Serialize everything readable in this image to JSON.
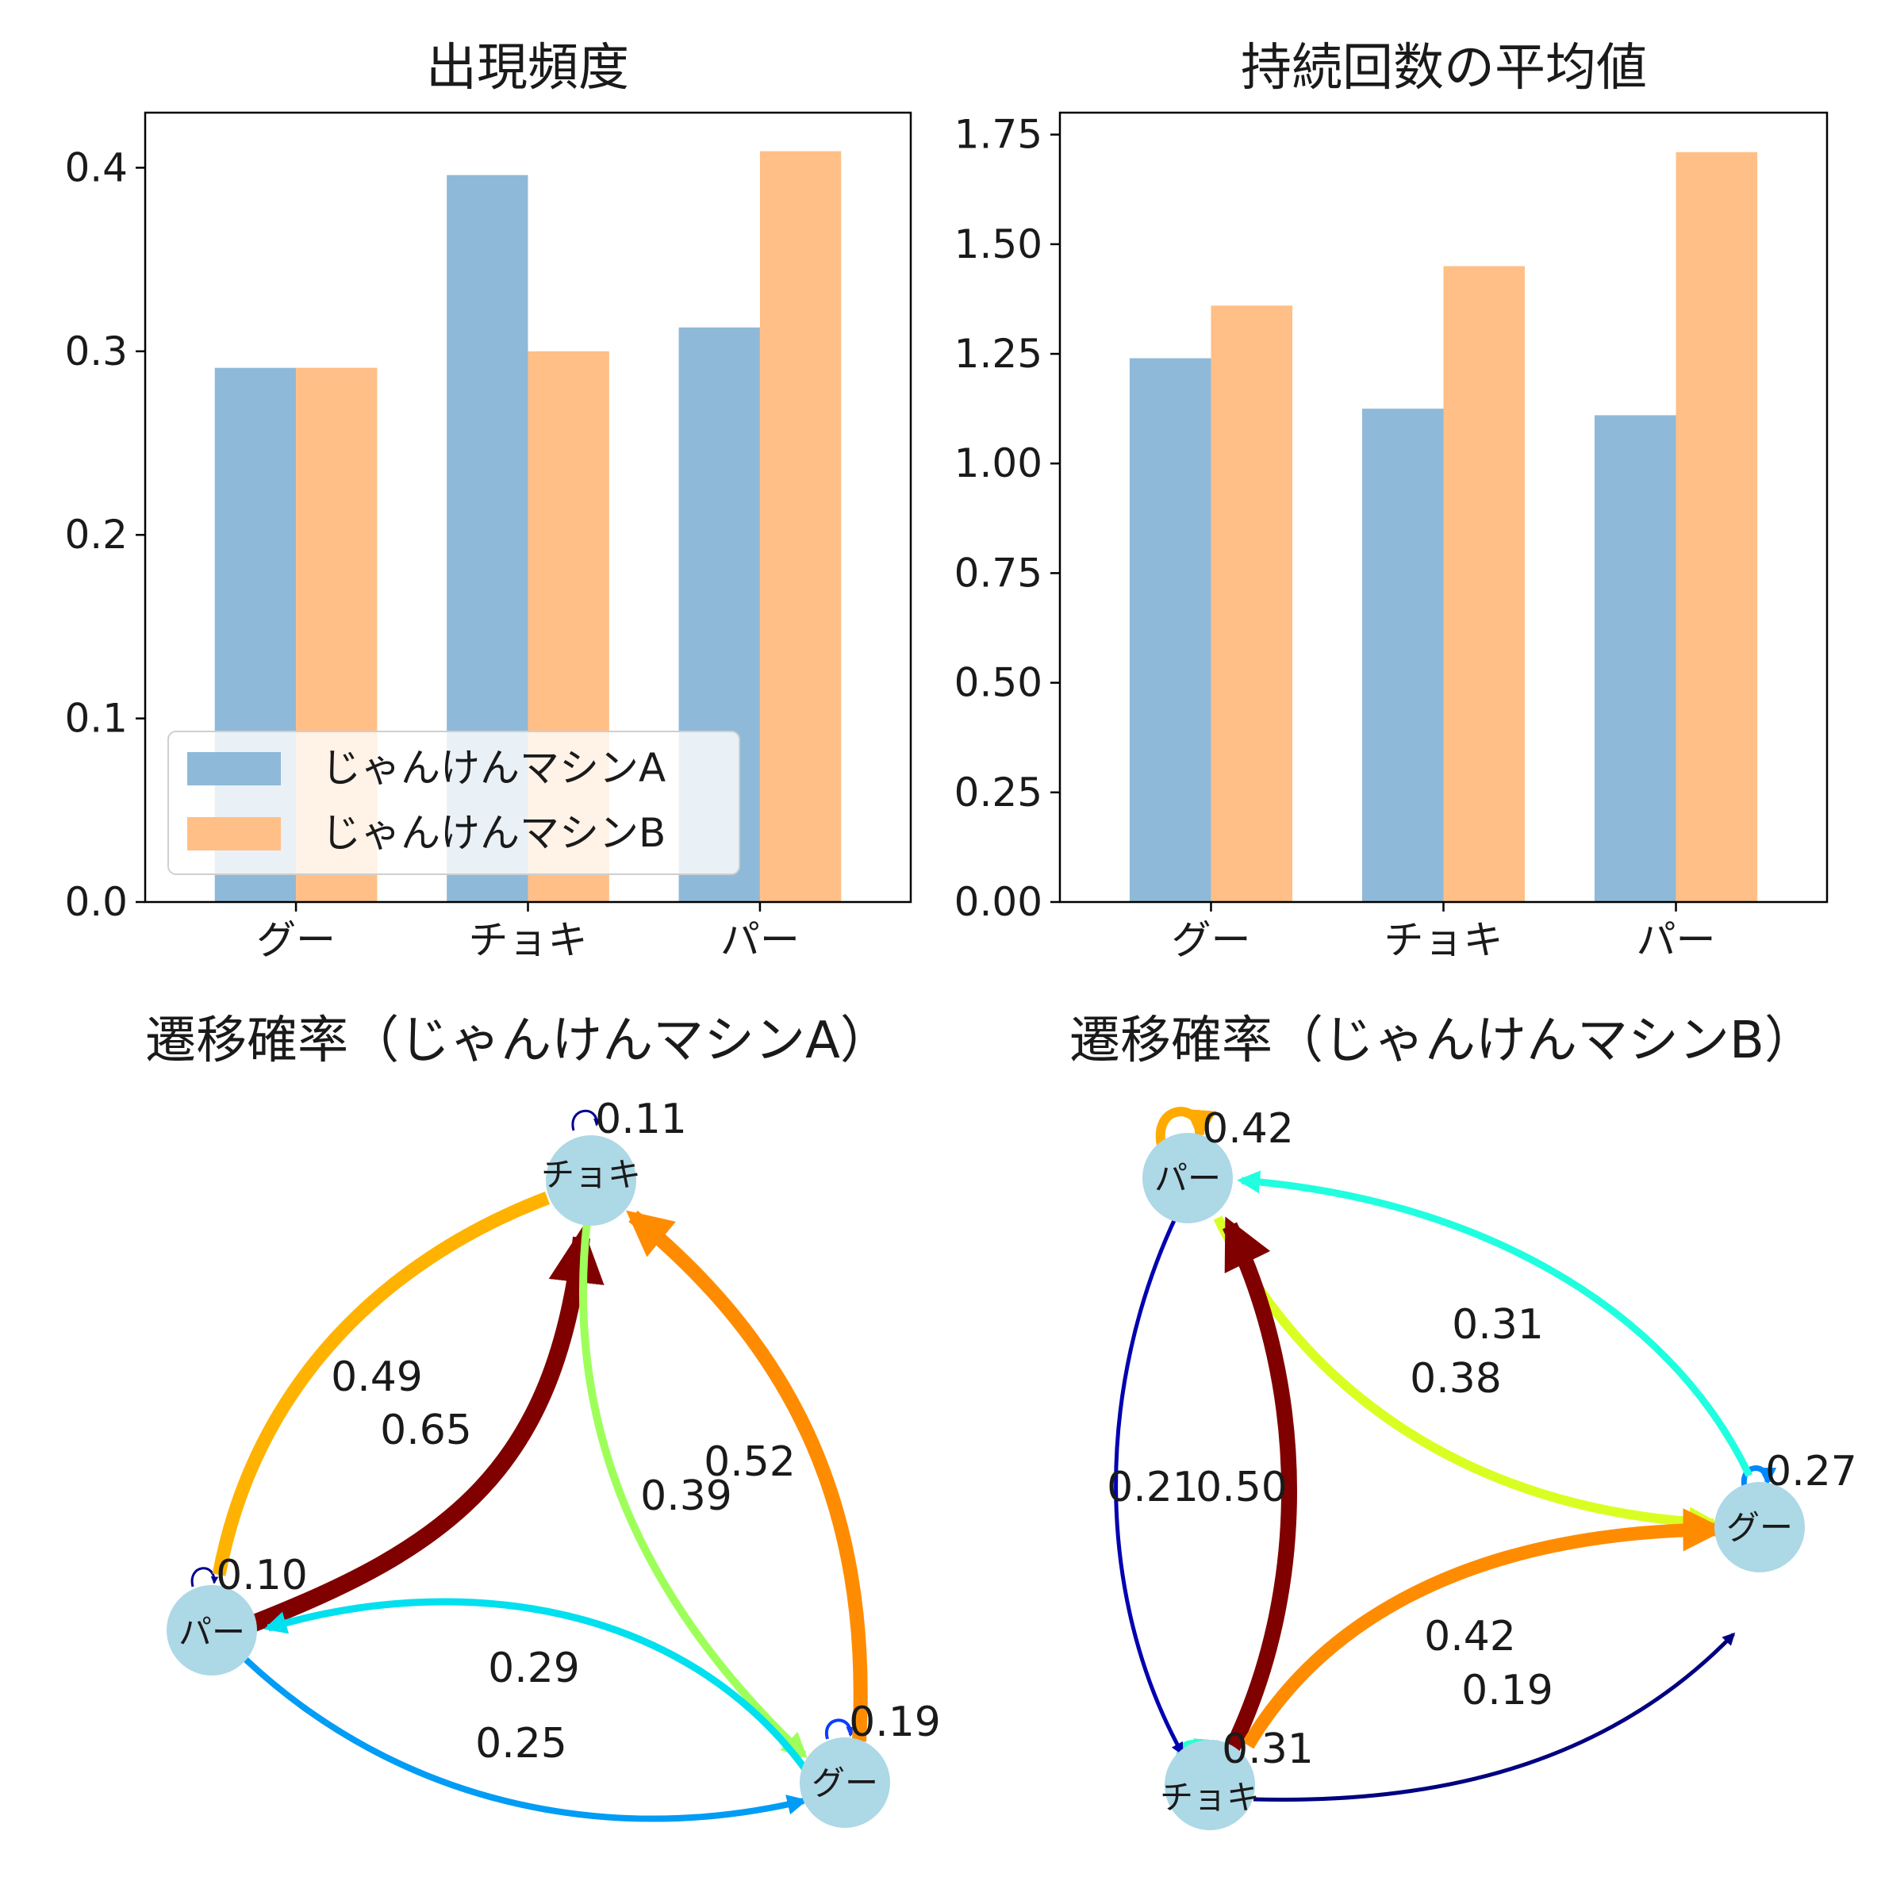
{
  "chart_data": [
    {
      "type": "bar",
      "title": "出現頻度",
      "categories": [
        "グー",
        "チョキ",
        "パー"
      ],
      "series": [
        {
          "name": "じゃんけんマシンA",
          "color": "#8fb9d8",
          "values": [
            0.291,
            0.396,
            0.313
          ]
        },
        {
          "name": "じゃんけんマシンB",
          "color": "#ffbf86",
          "values": [
            0.291,
            0.3,
            0.409
          ]
        }
      ],
      "ylim": [
        0,
        0.43
      ],
      "yticks": [
        "0.0",
        "0.1",
        "0.2",
        "0.3",
        "0.4"
      ],
      "legend": "lower-left"
    },
    {
      "type": "bar",
      "title": "持続回数の平均値",
      "categories": [
        "グー",
        "チョキ",
        "パー"
      ],
      "series": [
        {
          "name": "じゃんけんマシンA",
          "color": "#8fb9d8",
          "values": [
            1.24,
            1.125,
            1.11
          ]
        },
        {
          "name": "じゃんけんマシンB",
          "color": "#ffbf86",
          "values": [
            1.36,
            1.45,
            1.71
          ]
        }
      ],
      "ylim": [
        0,
        1.8
      ],
      "yticks": [
        "0.00",
        "0.25",
        "0.50",
        "0.75",
        "1.00",
        "1.25",
        "1.50",
        "1.75"
      ]
    },
    {
      "type": "diagram",
      "title": "遷移確率（じゃんけんマシンA）",
      "nodes": [
        "チョキ",
        "パー",
        "グー"
      ],
      "edges": [
        {
          "from": "チョキ",
          "to": "チョキ",
          "label": "0.11"
        },
        {
          "from": "チョキ",
          "to": "パー",
          "label": "0.49"
        },
        {
          "from": "パー",
          "to": "チョキ",
          "label": "0.65"
        },
        {
          "from": "チョキ",
          "to": "グー",
          "label": "0.39"
        },
        {
          "from": "グー",
          "to": "チョキ",
          "label": "0.52"
        },
        {
          "from": "パー",
          "to": "パー",
          "label": "0.10"
        },
        {
          "from": "グー",
          "to": "パー",
          "label": "0.29"
        },
        {
          "from": "パー",
          "to": "グー",
          "label": "0.25"
        },
        {
          "from": "グー",
          "to": "グー",
          "label": "0.19"
        }
      ]
    },
    {
      "type": "diagram",
      "title": "遷移確率（じゃんけんマシンB）",
      "nodes": [
        "パー",
        "グー",
        "チョキ"
      ],
      "edges": [
        {
          "from": "パー",
          "to": "パー",
          "label": "0.42"
        },
        {
          "from": "グー",
          "to": "パー",
          "label": "0.31"
        },
        {
          "from": "パー",
          "to": "グー",
          "label": "0.38"
        },
        {
          "from": "パー",
          "to": "チョキ",
          "label": "0.21"
        },
        {
          "from": "チョキ",
          "to": "パー",
          "label": "0.50"
        },
        {
          "from": "グー",
          "to": "グー",
          "label": "0.27"
        },
        {
          "from": "チョキ",
          "to": "グー",
          "label": "0.42"
        },
        {
          "from": "チョキ",
          "to": "グー",
          "label": "0.19"
        },
        {
          "from": "チョキ",
          "to": "チョキ",
          "label": "0.31"
        }
      ]
    }
  ]
}
